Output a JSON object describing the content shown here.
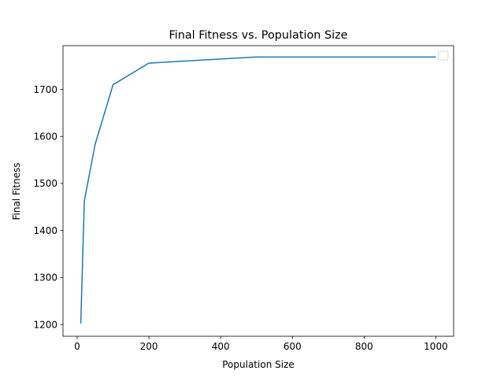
{
  "chart_data": {
    "type": "line",
    "title": "Final Fitness vs. Population Size",
    "xlabel": "Population Size",
    "ylabel": "Final Fitness",
    "xlim": [
      -39.5,
      1049.5
    ],
    "ylim": [
      1175,
      1793
    ],
    "xticks": [
      0,
      200,
      400,
      600,
      800,
      1000
    ],
    "yticks": [
      1200,
      1300,
      1400,
      1500,
      1600,
      1700
    ],
    "grid": false,
    "legend": "top-right (empty)",
    "series": [
      {
        "name": "",
        "color": "#1f77b4",
        "x": [
          10,
          20,
          50,
          100,
          200,
          500,
          1000
        ],
        "y": [
          1202,
          1463,
          1583,
          1710,
          1756,
          1769,
          1769
        ]
      }
    ]
  }
}
